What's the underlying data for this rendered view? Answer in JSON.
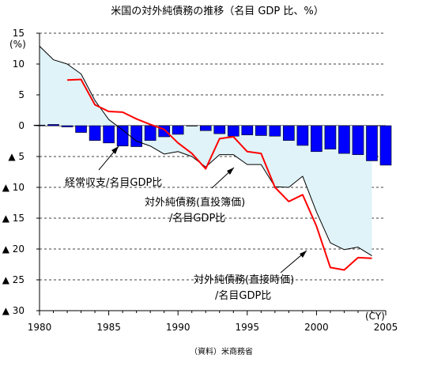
{
  "chart_data": {
    "type": "bar",
    "title": "米国の対外純債務の推移（名目 GDP 比、%）",
    "y_unit_label": "(%)",
    "x_unit_label": "(CY)",
    "source": "（資料）米商務省",
    "xlim": [
      1980,
      2005
    ],
    "ylim": [
      -30,
      15
    ],
    "x_ticks": [
      "1980",
      "1985",
      "1990",
      "1995",
      "2000",
      "2005"
    ],
    "y_ticks": [
      {
        "value": 15,
        "label": "15"
      },
      {
        "value": 10,
        "label": "10"
      },
      {
        "value": 5,
        "label": "5"
      },
      {
        "value": 0,
        "label": "0"
      },
      {
        "value": -5,
        "label": "▲ 5"
      },
      {
        "value": -10,
        "label": "▲ 10"
      },
      {
        "value": -15,
        "label": "▲ 15"
      },
      {
        "value": -20,
        "label": "▲ 20"
      },
      {
        "value": -25,
        "label": "▲ 25"
      },
      {
        "value": -30,
        "label": "▲ 30"
      }
    ],
    "grid": "horizontal dashed",
    "series": [
      {
        "name": "経常収支/名目GDP比",
        "kind": "bar",
        "color": "#0000ff",
        "x": [
          1980,
          1981,
          1982,
          1983,
          1984,
          1985,
          1986,
          1987,
          1988,
          1989,
          1990,
          1991,
          1992,
          1993,
          1994,
          1995,
          1996,
          1997,
          1998,
          1999,
          2000,
          2001,
          2002,
          2003,
          2004,
          2005
        ],
        "values": [
          0.1,
          0.2,
          -0.2,
          -1.1,
          -2.4,
          -2.8,
          -3.3,
          -3.4,
          -2.4,
          -1.8,
          -1.4,
          0.0,
          -0.8,
          -1.3,
          -1.7,
          -1.5,
          -1.6,
          -1.7,
          -2.4,
          -3.2,
          -4.2,
          -3.8,
          -4.5,
          -4.7,
          -5.7,
          -6.4
        ]
      },
      {
        "name": "対外純債務(直投簿価)/名目GDP比",
        "kind": "line",
        "color": "#000000",
        "fill": "#dff3f8",
        "x": [
          1980,
          1981,
          1982,
          1983,
          1984,
          1985,
          1986,
          1987,
          1988,
          1989,
          1990,
          1991,
          1992,
          1993,
          1994,
          1995,
          1996,
          1997,
          1998,
          1999,
          2000,
          2001,
          2002,
          2003,
          2004
        ],
        "values": [
          12.9,
          10.7,
          10.0,
          8.4,
          4.1,
          1.0,
          -0.7,
          -2.5,
          -3.3,
          -4.6,
          -4.2,
          -5.0,
          -6.7,
          -4.7,
          -4.7,
          -6.3,
          -6.3,
          -9.9,
          -10.0,
          -8.2,
          -14.0,
          -19.0,
          -20.1,
          -19.7,
          -21.1
        ]
      },
      {
        "name": "対外純債務(直接時価)/名目GDP比",
        "kind": "line",
        "color": "#ff0000",
        "x": [
          1982,
          1983,
          1984,
          1985,
          1986,
          1987,
          1988,
          1989,
          1990,
          1991,
          1992,
          1993,
          1994,
          1995,
          1996,
          1997,
          1998,
          1999,
          2000,
          2001,
          2002,
          2003,
          2004
        ],
        "values": [
          7.4,
          7.5,
          3.4,
          2.3,
          2.2,
          1.1,
          0.2,
          -0.6,
          -2.8,
          -4.5,
          -7.0,
          -2.1,
          -1.8,
          -4.2,
          -4.5,
          -10.0,
          -12.3,
          -11.2,
          -16.3,
          -23.0,
          -23.4,
          -21.4,
          -21.5
        ]
      }
    ],
    "annotations": [
      {
        "lines": [
          "経常収支/名目GDP比"
        ]
      },
      {
        "lines": [
          "対外純債務(直投簿価)",
          "/名目GDP比"
        ]
      },
      {
        "lines": [
          "対外純債務(直接時価)",
          "/名目GDP比"
        ]
      }
    ]
  }
}
